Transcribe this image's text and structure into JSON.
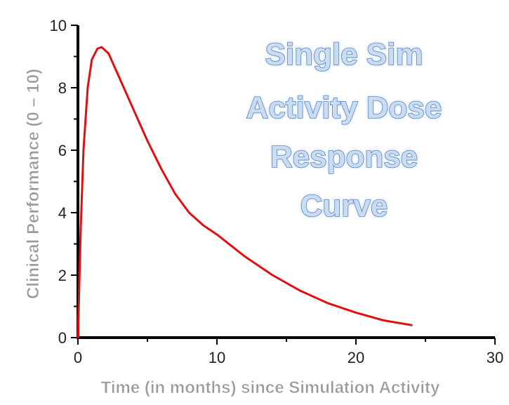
{
  "chart_data": {
    "type": "line",
    "title_lines": [
      "Single Sim",
      "Activity Dose",
      "Response",
      "Curve"
    ],
    "xlabel": "Time (in months) since Simulation Activity",
    "ylabel": "Clinical Performance (0 – 10)",
    "xlim": [
      0,
      30
    ],
    "ylim": [
      0,
      10
    ],
    "xticks": [
      0,
      10,
      20,
      30
    ],
    "xminor": [
      5,
      15,
      25
    ],
    "yticks": [
      0,
      2,
      4,
      6,
      8,
      10
    ],
    "yminor": [
      1,
      3,
      5,
      7,
      9
    ],
    "grid": false,
    "series": [
      {
        "color": "#dd1111",
        "x": [
          0,
          0.2,
          0.4,
          0.7,
          1.0,
          1.4,
          1.7,
          2.2,
          3,
          4,
          5,
          6,
          7,
          8,
          9,
          10,
          12,
          14,
          16,
          18,
          20,
          22,
          24
        ],
        "y": [
          0,
          3.5,
          6.0,
          8.0,
          8.9,
          9.25,
          9.3,
          9.1,
          8.3,
          7.3,
          6.3,
          5.4,
          4.6,
          4.0,
          3.6,
          3.3,
          2.6,
          2.0,
          1.5,
          1.1,
          0.8,
          0.55,
          0.4
        ]
      }
    ],
    "title_color": "#c9dcf2",
    "title_outline_color": "#5b86be"
  }
}
